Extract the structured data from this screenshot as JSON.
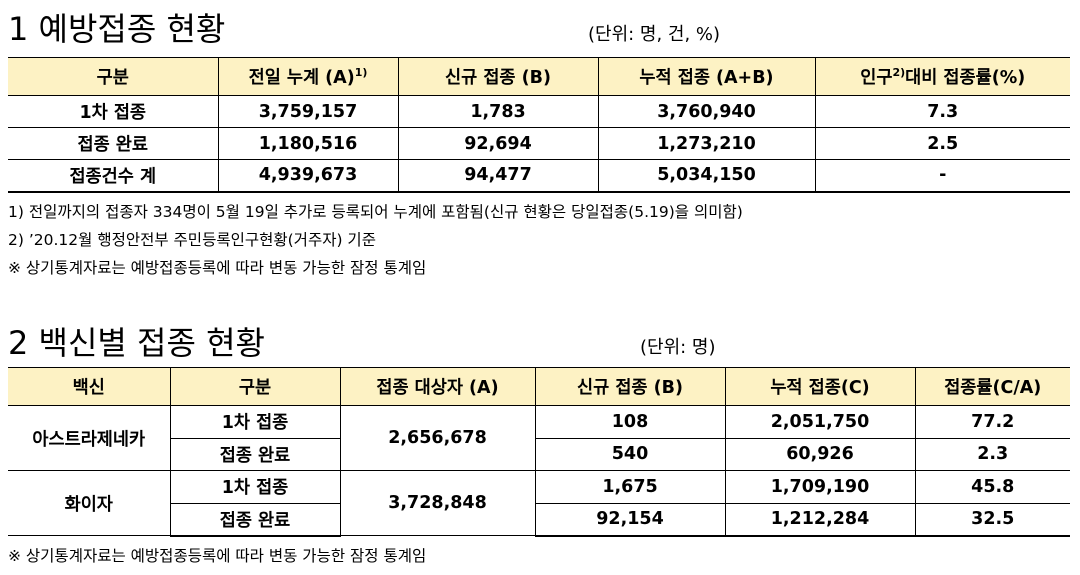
{
  "section1": {
    "title": "1 예방접종 현황",
    "unit": "(단위: 명, 건, %)",
    "header": [
      {
        "text": "구분"
      },
      {
        "text": "전일 누계 (A)",
        "sup": "1)"
      },
      {
        "text": "신규 접종 (B)"
      },
      {
        "text": "누적 접종 (A+B)"
      },
      {
        "text": "인구",
        "sup": "2)",
        "text2": "대비 접종률(%)"
      }
    ],
    "rows": [
      [
        "1차 접종",
        "3,759,157",
        "1,783",
        "3,760,940",
        "7.3"
      ],
      [
        "접종 완료",
        "1,180,516",
        "92,694",
        "1,273,210",
        "2.5"
      ],
      [
        "접종건수 계",
        "4,939,673",
        "94,477",
        "5,034,150",
        "-"
      ]
    ],
    "notes": [
      "1) 전일까지의 접종자 334명이 5월 19일 추가로 등록되어 누계에 포함됨(신규 현황은 당일접종(5.19)을 의미함)",
      "2) ’20.12월 행정안전부 주민등록인구현황(거주자) 기준",
      "※ 상기통계자료는 예방접종등록에 따라 변동 가능한 잠정 통계임"
    ]
  },
  "section2": {
    "title": "2 백신별 접종 현황",
    "unit": "(단위: 명)",
    "header": [
      "백신",
      "구분",
      "접종 대상자 (A)",
      "신규 접종 (B)",
      "누적 접종(C)",
      "접종률(C/A)"
    ],
    "groups": [
      {
        "vaccine": "아스트라제네카",
        "target": "2,656,678",
        "rows": [
          [
            "1차 접종",
            "108",
            "2,051,750",
            "77.2"
          ],
          [
            "접종 완료",
            "540",
            "60,926",
            "2.3"
          ]
        ]
      },
      {
        "vaccine": "화이자",
        "target": "3,728,848",
        "rows": [
          [
            "1차 접종",
            "1,675",
            "1,709,190",
            "45.8"
          ],
          [
            "접종 완료",
            "92,154",
            "1,212,284",
            "32.5"
          ]
        ]
      }
    ],
    "note": "※ 상기통계자료는 예방접종등록에 따라 변동 가능한 잠정 통계임"
  }
}
